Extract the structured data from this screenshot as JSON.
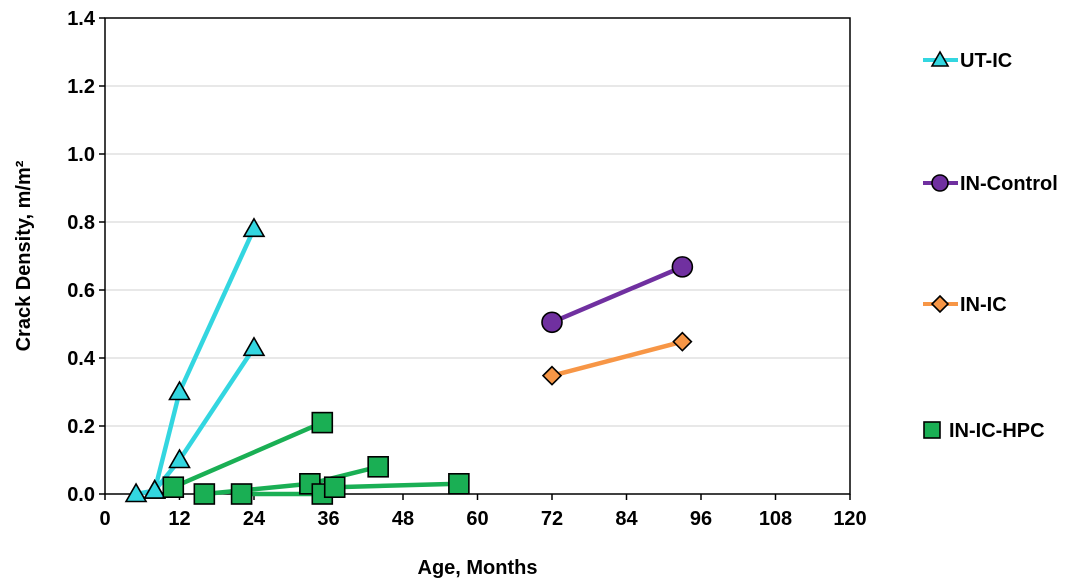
{
  "chart_data": {
    "type": "line",
    "xlabel": "Age, Months",
    "ylabel": "Crack Density, m/m²",
    "xlim": [
      0,
      120
    ],
    "ylim": [
      0,
      1.4
    ],
    "xticks": [
      "0",
      "12",
      "24",
      "36",
      "48",
      "60",
      "72",
      "84",
      "96",
      "108",
      "120"
    ],
    "yticks": [
      "0.0",
      "0.2",
      "0.4",
      "0.6",
      "0.8",
      "1.0",
      "1.2",
      "1.4"
    ],
    "grid": "horizontal",
    "legend_position": "right",
    "series": [
      {
        "name": "UT-IC",
        "marker": "triangle",
        "line_color": "#33d6e0",
        "fill_color": "#33d6e0",
        "segments": [
          [
            [
              5,
              0.0
            ],
            [
              8,
              0.01
            ],
            [
              12,
              0.3
            ],
            [
              24,
              0.78
            ]
          ],
          [
            [
              8,
              0.01
            ],
            [
              12,
              0.1
            ],
            [
              24,
              0.43
            ]
          ]
        ]
      },
      {
        "name": "IN-Control",
        "marker": "circle",
        "line_color": "#7030a0",
        "fill_color": "#7030a0",
        "segments": [
          [
            [
              72,
              0.505
            ],
            [
              93,
              0.668
            ]
          ]
        ]
      },
      {
        "name": "IN-IC",
        "marker": "diamond",
        "line_color": "#f79646",
        "fill_color": "#f79646",
        "segments": [
          [
            [
              72,
              0.348
            ],
            [
              93,
              0.448
            ]
          ]
        ]
      },
      {
        "name": "IN-IC-HPC",
        "marker": "square",
        "line_color": "#1aaf54",
        "fill_color": "#1aaf54",
        "legend_line": false,
        "segments": [
          [
            [
              11,
              0.02
            ],
            [
              35,
              0.21
            ]
          ],
          [
            [
              16,
              0.0
            ],
            [
              33,
              0.03
            ],
            [
              44,
              0.08
            ]
          ],
          [
            [
              22,
              0.0
            ],
            [
              35,
              0.0
            ],
            [
              37,
              0.02
            ],
            [
              57,
              0.03
            ]
          ]
        ]
      }
    ]
  }
}
